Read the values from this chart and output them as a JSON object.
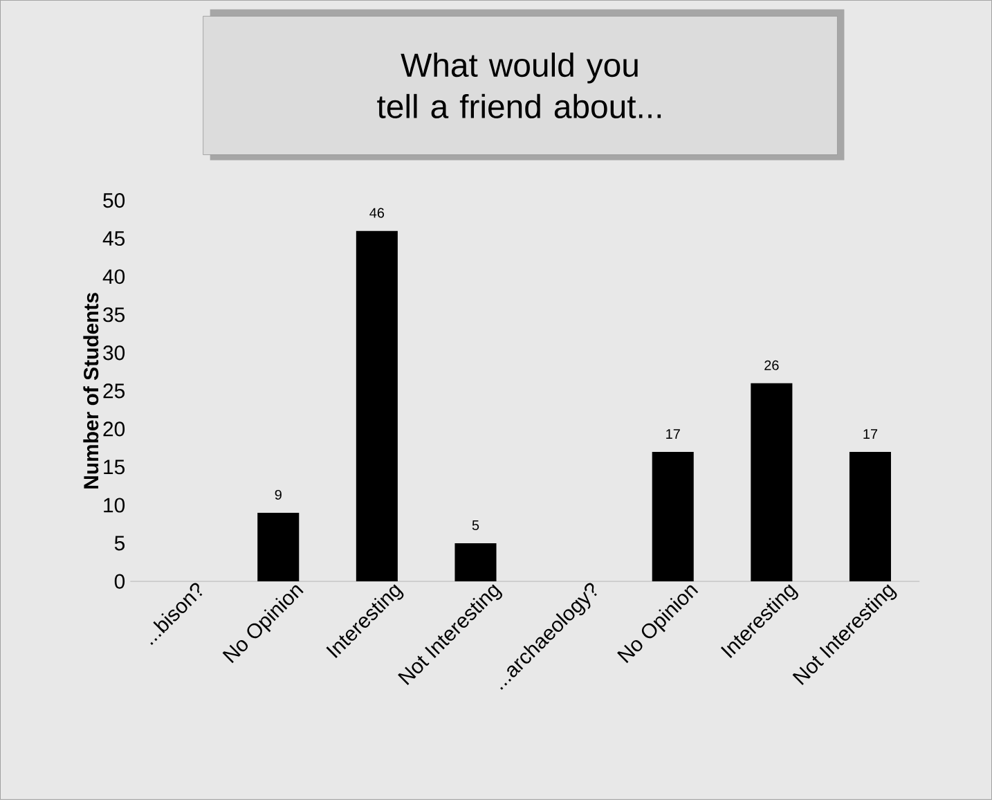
{
  "chart_data": {
    "type": "bar",
    "title": "What would you tell a friend about...",
    "ylabel": "Number of Students",
    "categories": [
      "...bison?",
      "No Opinion",
      "Interesting",
      "Not Interesting",
      "...archaeology?",
      "No Opinion",
      "Interesting",
      "Not Interesting"
    ],
    "values": [
      null,
      9,
      46,
      5,
      null,
      17,
      26,
      17
    ],
    "color": "#000000",
    "ylim": [
      0,
      50
    ],
    "yticks": [
      0,
      5,
      10,
      15,
      20,
      25,
      30,
      35,
      40,
      45,
      50
    ],
    "grid": false,
    "data_labels": true
  }
}
